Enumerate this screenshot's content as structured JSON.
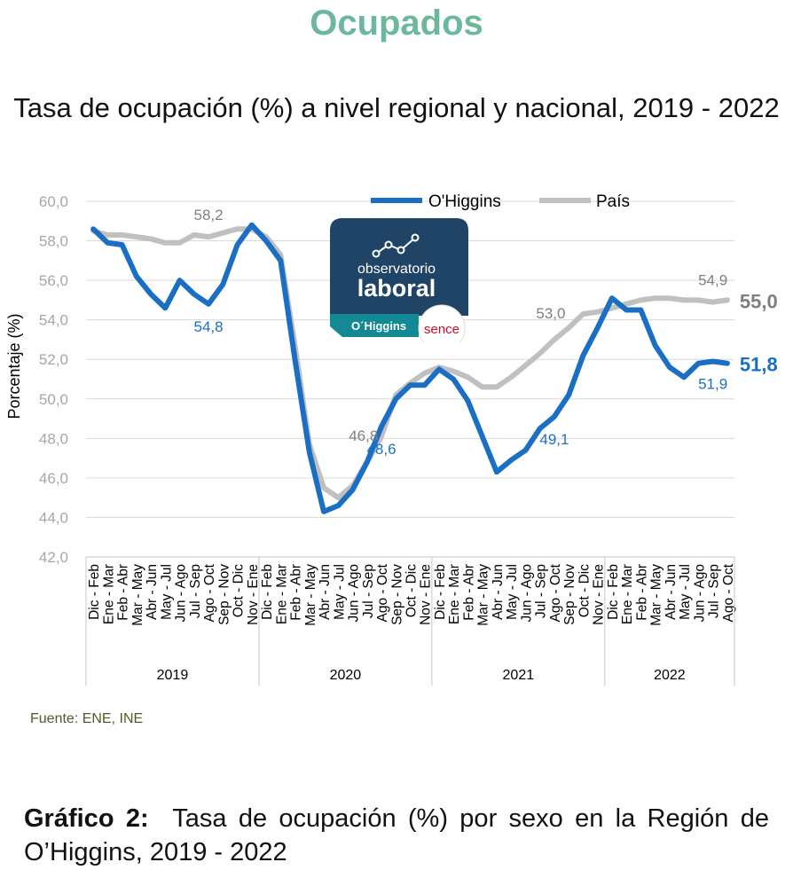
{
  "heading": "Ocupados",
  "subtitle": "Tasa de ocupación (%) a nivel regional y nacional, 2019 - 2022",
  "source": "Fuente: ENE, INE",
  "caption": {
    "bold": "Gráfico 2:",
    "text": "Tasa de ocupación (%) por sexo en la Región de O’Higgins, 2019 - 2022"
  },
  "logo": {
    "line1": "observatorio",
    "line2": "laboral",
    "region": "O´Higgins",
    "brand": "sence",
    "colors": {
      "dark": "#1f4466",
      "teal": "#138a93",
      "brand": "#c8102e"
    }
  },
  "colors": {
    "ohiggins": "#1a6fc4",
    "pais": "#c0c0c0",
    "grid": "#d9d9d9",
    "axis_text": "#a6a6a6"
  },
  "chart_data": {
    "type": "line",
    "title": "",
    "ylabel": "Porcentaje (%)",
    "xlabel": "",
    "ylim": [
      42,
      60
    ],
    "yticks": [
      "60,0",
      "58,0",
      "56,0",
      "54,0",
      "52,0",
      "50,0",
      "48,0",
      "46,0",
      "44,0",
      "42,0"
    ],
    "legend_position": "top",
    "categories": [
      "Dic - Feb",
      "Ene - Mar",
      "Feb - Abr",
      "Mar - May",
      "Abr - Jun",
      "May - Jul",
      "Jun - Ago",
      "Jul - Sep",
      "Ago - Oct",
      "Sep - Nov",
      "Oct - Dic",
      "Nov - Ene",
      "Dic - Feb",
      "Ene - Mar",
      "Feb - Abr",
      "Mar - May",
      "Abr - Jun",
      "May - Jul",
      "Jun - Ago",
      "Jul - Sep",
      "Ago - Oct",
      "Sep - Nov",
      "Oct - Dic",
      "Nov - Ene",
      "Dic - Feb",
      "Ene - Mar",
      "Feb - Abr",
      "Mar - May",
      "Abr - Jun",
      "May - Jul",
      "Jun - Ago",
      "Jul - Sep",
      "Ago - Oct",
      "Sep - Nov",
      "Oct - Dic",
      "Nov - Ene",
      "Dic - Feb",
      "Ene - Mar",
      "Feb - Abr",
      "Mar - May",
      "Abr - Jun",
      "May - Jul",
      "Jun - Ago",
      "Jul - Sep",
      "Ago - Oct"
    ],
    "years": [
      "2019",
      "2020",
      "2021",
      "2022"
    ],
    "year_lengths": [
      12,
      12,
      12,
      9
    ],
    "series": [
      {
        "name": "O'Higgins",
        "color": "#1a6fc4",
        "values": [
          58.6,
          57.9,
          57.8,
          56.2,
          55.3,
          54.6,
          56.0,
          55.3,
          54.8,
          55.8,
          57.8,
          58.8,
          58.0,
          57.0,
          52.0,
          47.3,
          44.3,
          44.6,
          45.4,
          46.8,
          48.6,
          50.0,
          50.7,
          50.7,
          51.5,
          51.0,
          49.9,
          48.1,
          46.3,
          46.9,
          47.4,
          48.5,
          49.1,
          50.2,
          52.2,
          53.6,
          55.1,
          54.5,
          54.5,
          52.7,
          51.6,
          51.1,
          51.8,
          51.9,
          51.8
        ]
      },
      {
        "name": "País",
        "color": "#c0c0c0",
        "values": [
          58.5,
          58.3,
          58.3,
          58.2,
          58.1,
          57.9,
          57.9,
          58.3,
          58.2,
          58.4,
          58.6,
          58.6,
          58.2,
          57.3,
          52.7,
          47.7,
          45.5,
          45.0,
          45.6,
          46.8,
          48.1,
          50.2,
          50.8,
          51.3,
          51.6,
          51.4,
          51.1,
          50.6,
          50.6,
          51.1,
          51.7,
          52.3,
          53.0,
          53.6,
          54.3,
          54.4,
          54.6,
          54.8,
          55.0,
          55.1,
          55.1,
          55.0,
          55.0,
          54.9,
          55.0
        ]
      }
    ],
    "annotations": [
      {
        "series": "País",
        "index": 8,
        "label": "58,2",
        "pos": "above"
      },
      {
        "series": "O'Higgins",
        "index": 8,
        "label": "54,8",
        "pos": "below"
      },
      {
        "series": "País",
        "index": 19,
        "label": "46,8",
        "pos": "aboveleft"
      },
      {
        "series": "O'Higgins",
        "index": 20,
        "label": "48,6",
        "pos": "below"
      },
      {
        "series": "País",
        "index": 32,
        "label": "53,0",
        "pos": "aboveleft"
      },
      {
        "series": "O'Higgins",
        "index": 32,
        "label": "49,1",
        "pos": "below"
      },
      {
        "series": "País",
        "index": 43,
        "label": "54,9",
        "pos": "above"
      },
      {
        "series": "O'Higgins",
        "index": 43,
        "label": "51,9",
        "pos": "below"
      },
      {
        "series": "País",
        "index": 44,
        "label": "55,0",
        "pos": "endbold"
      },
      {
        "series": "O'Higgins",
        "index": 44,
        "label": "51,8",
        "pos": "endbold"
      }
    ]
  }
}
